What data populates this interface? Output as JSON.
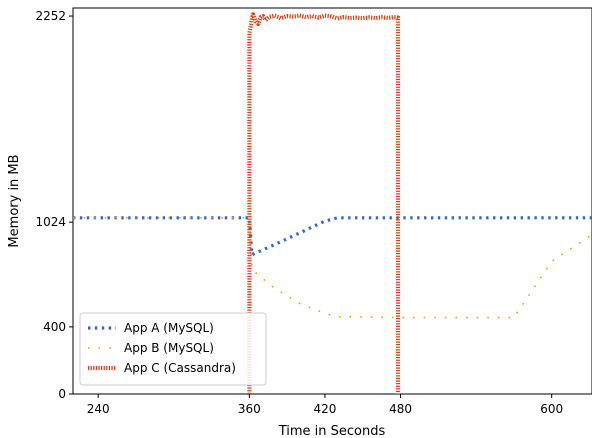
{
  "chart_data": {
    "type": "line",
    "title": "",
    "xlabel": "Time in Seconds",
    "ylabel": "Memory in MB",
    "xlim": [
      220,
      632
    ],
    "ylim": [
      0,
      2300
    ],
    "xticks": [
      240,
      360,
      420,
      480,
      600
    ],
    "yticks": [
      0,
      400,
      1024,
      2252
    ],
    "grid": false,
    "legend_position": "lower-left",
    "series": [
      {
        "name": "App A (MySQL)",
        "color": "#3366cc",
        "style": "dotted-thick",
        "x": [
          220,
          358,
          360,
          362,
          380,
          400,
          420,
          430,
          440,
          480,
          520,
          560,
          600,
          632
        ],
        "y": [
          1050,
          1050,
          1050,
          830,
          890,
          960,
          1030,
          1050,
          1050,
          1050,
          1050,
          1050,
          1050,
          1050
        ]
      },
      {
        "name": "App B (MySQL)",
        "color": "#f5a000",
        "style": "dotted-sparse",
        "x": [
          220,
          358,
          360,
          362,
          380,
          400,
          420,
          430,
          440,
          480,
          520,
          560,
          570,
          600,
          632
        ],
        "y": [
          1050,
          1050,
          1050,
          740,
          630,
          540,
          480,
          460,
          460,
          455,
          455,
          455,
          455,
          790,
          950
        ]
      },
      {
        "name": "App C (Cassandra)",
        "color": "#d9431a",
        "style": "dotted-dense",
        "x": [
          360,
          360,
          361,
          362,
          363,
          365,
          367,
          369,
          371,
          373,
          376,
          380,
          385,
          390,
          395,
          400,
          405,
          410,
          415,
          420,
          425,
          430,
          435,
          440,
          445,
          450,
          455,
          460,
          465,
          470,
          475,
          478,
          478
        ],
        "y": [
          0,
          2150,
          2190,
          2240,
          2262,
          2220,
          2205,
          2245,
          2252,
          2228,
          2248,
          2255,
          2240,
          2252,
          2248,
          2256,
          2245,
          2252,
          2243,
          2255,
          2250,
          2238,
          2246,
          2240,
          2243,
          2239,
          2244,
          2240,
          2245,
          2241,
          2246,
          2243,
          0
        ]
      }
    ]
  }
}
